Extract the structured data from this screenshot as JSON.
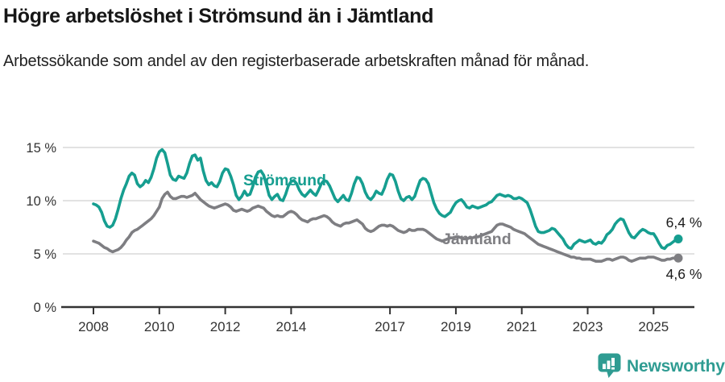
{
  "header": {
    "title": "Högre arbetslöshet i Strömsund än i Jämtland",
    "subtitle": "Arbetssökande som andel av den registerbaserade arbetskraften månad för månad."
  },
  "chart_data": {
    "type": "line",
    "unit": "%",
    "frequency": "monthly",
    "x_start": "2008-01",
    "x_end": "2025-10",
    "ylim": [
      0,
      15
    ],
    "grid": "horizontal",
    "legend_position": "inline-labels",
    "yticks": [
      {
        "value": 0,
        "label": "0 %"
      },
      {
        "value": 5,
        "label": "5 %"
      },
      {
        "value": 10,
        "label": "10 %"
      },
      {
        "value": 15,
        "label": "15 %"
      }
    ],
    "xticks": [
      {
        "label": "2008",
        "month_index": 0
      },
      {
        "label": "2010",
        "month_index": 24
      },
      {
        "label": "2012",
        "month_index": 48
      },
      {
        "label": "2014",
        "month_index": 72
      },
      {
        "label": "2017",
        "month_index": 108
      },
      {
        "label": "2019",
        "month_index": 132
      },
      {
        "label": "2021",
        "month_index": 156
      },
      {
        "label": "2023",
        "month_index": 180
      },
      {
        "label": "2025",
        "month_index": 204
      }
    ],
    "colors": {
      "grid": "#e2e2e2",
      "axis": "#333333",
      "tick_text": "#333333",
      "annotation_text": "#1a1a1a"
    },
    "series": [
      {
        "name": "Jämtland",
        "color": "#7E7E82",
        "end_label": "4,6 %",
        "end_label_side": "below",
        "values": [
          6.2,
          6.1,
          6.0,
          5.8,
          5.6,
          5.5,
          5.3,
          5.2,
          5.3,
          5.4,
          5.6,
          5.9,
          6.3,
          6.6,
          7.0,
          7.2,
          7.3,
          7.5,
          7.7,
          7.9,
          8.1,
          8.3,
          8.6,
          9.0,
          9.4,
          10.2,
          10.6,
          10.8,
          10.4,
          10.2,
          10.2,
          10.3,
          10.4,
          10.4,
          10.3,
          10.4,
          10.5,
          10.7,
          10.4,
          10.1,
          9.9,
          9.7,
          9.5,
          9.4,
          9.3,
          9.4,
          9.5,
          9.6,
          9.7,
          9.6,
          9.4,
          9.1,
          9.0,
          9.1,
          9.2,
          9.1,
          9.0,
          9.1,
          9.3,
          9.4,
          9.5,
          9.4,
          9.3,
          9.0,
          8.8,
          8.6,
          8.5,
          8.6,
          8.5,
          8.5,
          8.7,
          8.9,
          9.0,
          8.9,
          8.7,
          8.4,
          8.2,
          8.1,
          8.0,
          8.2,
          8.3,
          8.3,
          8.4,
          8.5,
          8.6,
          8.5,
          8.3,
          8.0,
          7.8,
          7.7,
          7.6,
          7.8,
          7.9,
          7.9,
          8.0,
          8.1,
          8.2,
          8.0,
          7.8,
          7.4,
          7.2,
          7.1,
          7.2,
          7.4,
          7.6,
          7.7,
          7.7,
          7.6,
          7.7,
          7.6,
          7.4,
          7.2,
          7.1,
          7.0,
          7.1,
          7.3,
          7.2,
          7.2,
          7.3,
          7.3,
          7.3,
          7.2,
          7.0,
          6.8,
          6.6,
          6.4,
          6.3,
          6.2,
          6.3,
          6.4,
          6.5,
          6.5,
          6.6,
          6.6,
          6.5,
          6.4,
          6.4,
          6.5,
          6.5,
          6.6,
          6.6,
          6.7,
          6.8,
          6.9,
          7.0,
          7.1,
          7.4,
          7.7,
          7.8,
          7.8,
          7.7,
          7.6,
          7.5,
          7.3,
          7.2,
          7.1,
          7.0,
          6.9,
          6.7,
          6.5,
          6.3,
          6.1,
          5.9,
          5.8,
          5.7,
          5.6,
          5.5,
          5.4,
          5.3,
          5.2,
          5.1,
          5.0,
          4.9,
          4.8,
          4.7,
          4.7,
          4.6,
          4.6,
          4.5,
          4.5,
          4.5,
          4.5,
          4.4,
          4.3,
          4.3,
          4.3,
          4.4,
          4.5,
          4.5,
          4.4,
          4.5,
          4.6,
          4.7,
          4.7,
          4.6,
          4.4,
          4.3,
          4.4,
          4.5,
          4.6,
          4.6,
          4.6,
          4.7,
          4.7,
          4.7,
          4.6,
          4.5,
          4.4,
          4.4,
          4.5,
          4.5,
          4.6,
          4.6,
          4.6
        ]
      },
      {
        "name": "Strömsund",
        "color": "#169E90",
        "end_label": "6,4 %",
        "end_label_side": "above",
        "values": [
          9.7,
          9.6,
          9.4,
          8.9,
          8.1,
          7.6,
          7.5,
          7.7,
          8.3,
          9.2,
          10.2,
          11.0,
          11.6,
          12.3,
          12.6,
          12.4,
          11.6,
          11.3,
          11.5,
          11.9,
          11.7,
          12.2,
          13.0,
          14.0,
          14.6,
          14.8,
          14.5,
          13.5,
          12.4,
          12.0,
          11.9,
          12.3,
          12.2,
          12.1,
          12.6,
          13.5,
          14.2,
          14.3,
          13.8,
          14.0,
          12.8,
          11.9,
          11.5,
          11.7,
          11.4,
          11.3,
          11.8,
          12.6,
          13.0,
          12.9,
          12.3,
          11.5,
          10.5,
          10.1,
          10.4,
          10.9,
          10.5,
          10.6,
          11.3,
          12.2,
          12.7,
          12.8,
          12.4,
          11.5,
          10.5,
          10.1,
          10.4,
          10.6,
          10.1,
          10.0,
          10.6,
          11.4,
          11.8,
          11.9,
          11.6,
          11.0,
          10.6,
          10.4,
          10.7,
          11.0,
          10.7,
          10.5,
          11.0,
          11.6,
          11.9,
          11.8,
          11.4,
          10.8,
          10.2,
          9.9,
          10.2,
          10.5,
          10.1,
          10.0,
          10.7,
          11.6,
          12.2,
          12.1,
          11.6,
          10.8,
          10.3,
          10.1,
          10.4,
          10.9,
          10.7,
          10.6,
          11.2,
          12.0,
          12.5,
          12.4,
          11.8,
          10.9,
          10.2,
          10.0,
          10.3,
          10.4,
          10.1,
          10.4,
          11.2,
          11.9,
          12.1,
          12.0,
          11.6,
          10.7,
          9.8,
          9.2,
          8.8,
          8.6,
          8.5,
          8.7,
          8.9,
          9.4,
          9.8,
          10.0,
          10.1,
          9.8,
          9.4,
          9.3,
          9.5,
          9.4,
          9.3,
          9.4,
          9.5,
          9.6,
          9.8,
          9.9,
          10.2,
          10.5,
          10.6,
          10.5,
          10.4,
          10.5,
          10.4,
          10.2,
          10.2,
          10.3,
          10.2,
          10.0,
          9.8,
          9.2,
          8.4,
          7.6,
          7.1,
          7.0,
          7.0,
          7.1,
          7.2,
          7.4,
          7.3,
          7.0,
          6.7,
          6.4,
          5.9,
          5.6,
          5.5,
          5.9,
          6.1,
          6.3,
          6.2,
          6.1,
          6.2,
          6.3,
          6.0,
          5.9,
          6.1,
          6.0,
          6.3,
          6.8,
          7.0,
          7.3,
          7.8,
          8.1,
          8.3,
          8.2,
          7.6,
          7.0,
          6.6,
          6.5,
          6.8,
          7.1,
          7.3,
          7.2,
          7.0,
          6.9,
          6.9,
          6.5,
          6.0,
          5.6,
          5.5,
          5.8,
          5.9,
          6.1,
          6.3,
          6.4
        ]
      }
    ]
  },
  "footer": {
    "brand": "Newsworthy",
    "brand_color": "#2F9C92",
    "logo_icon": "bar-chart-speech-bubble-icon"
  }
}
